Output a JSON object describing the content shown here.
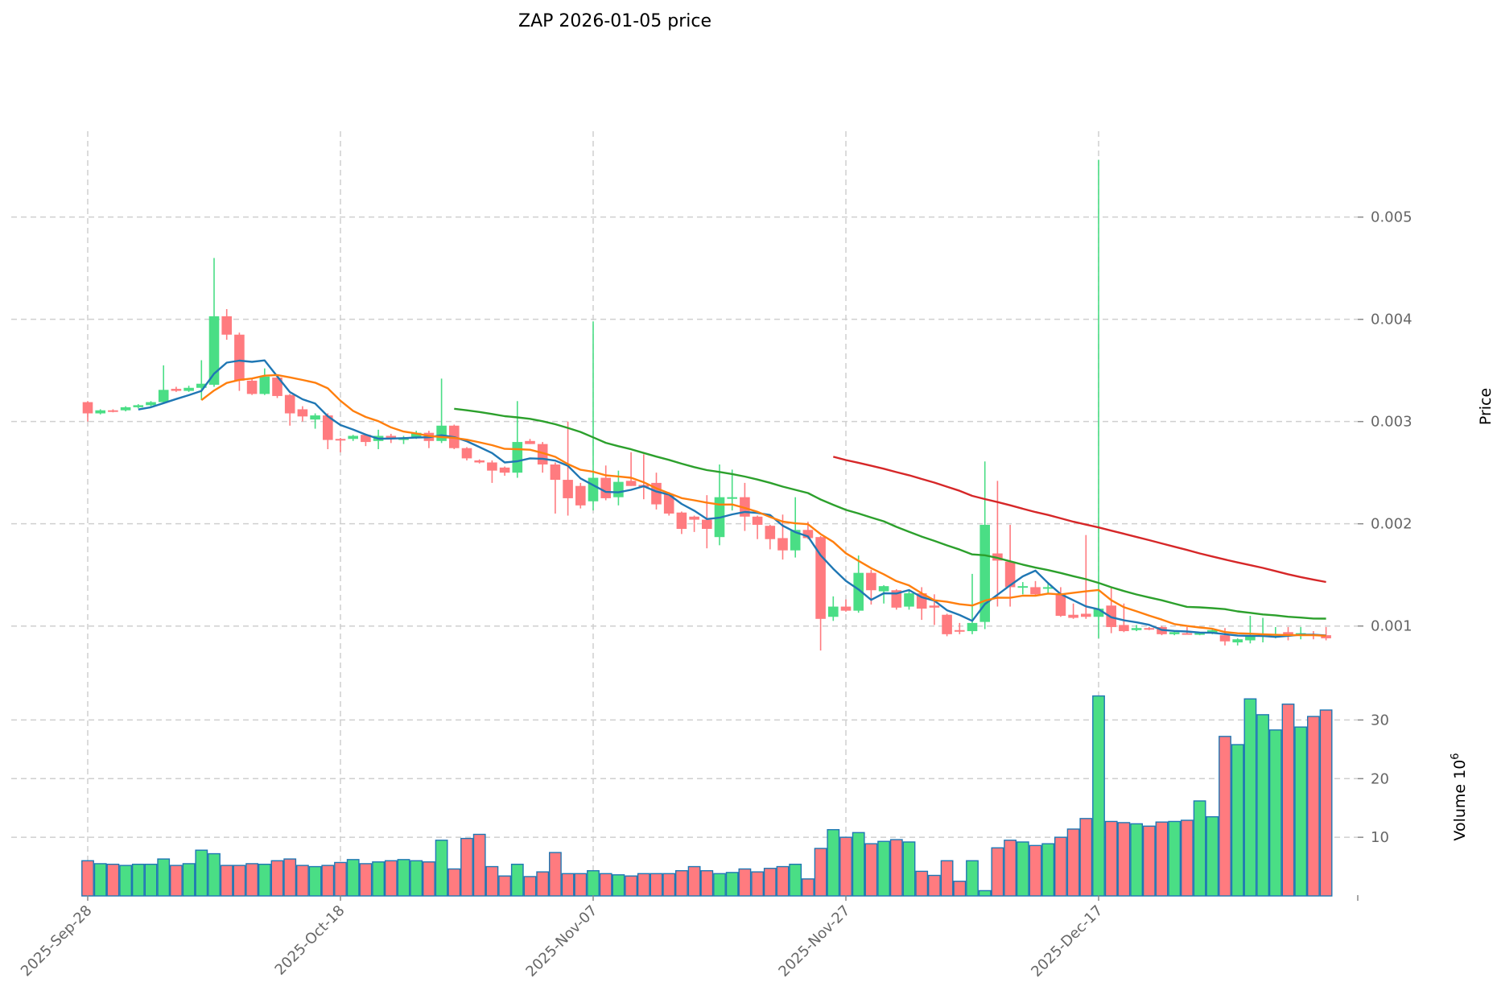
{
  "chart_data": {
    "type": "candlestick",
    "title": "ZAP  2026-01-05  price",
    "ylabel": "Price",
    "volume_label": "Volume  10",
    "volume_label_exp": "6",
    "start_date": "2025-09-28",
    "ylim": [
      0.00047,
      0.00584
    ],
    "volume_ylim": [
      0,
      35
    ],
    "grid": true,
    "price_ticks": [
      {
        "value": 0.001,
        "label": "0.001"
      },
      {
        "value": 0.002,
        "label": "0.002"
      },
      {
        "value": 0.003,
        "label": "0.003"
      },
      {
        "value": 0.004,
        "label": "0.004"
      },
      {
        "value": 0.005,
        "label": "0.005"
      }
    ],
    "volume_ticks": [
      {
        "value": 10,
        "label": "10"
      },
      {
        "value": 20,
        "label": "20"
      },
      {
        "value": 30,
        "label": "30"
      }
    ],
    "x_ticks": [
      {
        "index": 0,
        "label": "2025-Sep-28"
      },
      {
        "index": 20,
        "label": "2025-Oct-18"
      },
      {
        "index": 40,
        "label": "2025-Nov-07"
      },
      {
        "index": 60,
        "label": "2025-Nov-27"
      },
      {
        "index": 80,
        "label": "2025-Dec-17"
      }
    ],
    "colors": {
      "up": "#4ade85",
      "down": "#ff7b7f",
      "volume_edge": "#1f77b4"
    },
    "moving_averages": [
      {
        "period": 5,
        "color": "#1f77b4"
      },
      {
        "period": 10,
        "color": "#ff7f0e"
      },
      {
        "period": 30,
        "color": "#2ca02c"
      },
      {
        "period": 60,
        "color": "#d62728"
      }
    ],
    "ohlc": [
      [
        0.00319,
        0.0032,
        0.003,
        0.00308
      ],
      [
        0.00308,
        0.00312,
        0.00307,
        0.00311
      ],
      [
        0.00311,
        0.00312,
        0.00309,
        0.0031
      ],
      [
        0.00311,
        0.00315,
        0.0031,
        0.00314
      ],
      [
        0.00314,
        0.00317,
        0.00313,
        0.00316
      ],
      [
        0.00316,
        0.0032,
        0.00315,
        0.00319
      ],
      [
        0.00319,
        0.00355,
        0.00318,
        0.00331
      ],
      [
        0.00332,
        0.00334,
        0.00329,
        0.0033
      ],
      [
        0.0033,
        0.00335,
        0.00329,
        0.00333
      ],
      [
        0.00333,
        0.0036,
        0.00321,
        0.00337
      ],
      [
        0.00336,
        0.0046,
        0.00334,
        0.00403
      ],
      [
        0.00403,
        0.0041,
        0.0038,
        0.00385
      ],
      [
        0.00385,
        0.00387,
        0.0033,
        0.0034
      ],
      [
        0.0034,
        0.00342,
        0.00326,
        0.00327
      ],
      [
        0.00327,
        0.00352,
        0.00326,
        0.00344
      ],
      [
        0.00343,
        0.00345,
        0.00323,
        0.00325
      ],
      [
        0.00326,
        0.00327,
        0.00296,
        0.00308
      ],
      [
        0.00312,
        0.00315,
        0.003,
        0.00305
      ],
      [
        0.00302,
        0.00308,
        0.00293,
        0.00306
      ],
      [
        0.00306,
        0.00308,
        0.00273,
        0.00282
      ],
      [
        0.00283,
        0.00284,
        0.0027,
        0.00282
      ],
      [
        0.00283,
        0.00287,
        0.00281,
        0.00286
      ],
      [
        0.00287,
        0.00288,
        0.00276,
        0.0028
      ],
      [
        0.00281,
        0.00292,
        0.00273,
        0.00286
      ],
      [
        0.00286,
        0.00288,
        0.00279,
        0.00283
      ],
      [
        0.00282,
        0.00286,
        0.00278,
        0.00284
      ],
      [
        0.00285,
        0.00291,
        0.00283,
        0.00289
      ],
      [
        0.00289,
        0.00291,
        0.00274,
        0.00281
      ],
      [
        0.00281,
        0.00342,
        0.00279,
        0.00296
      ],
      [
        0.00296,
        0.00297,
        0.00273,
        0.00274
      ],
      [
        0.00274,
        0.00275,
        0.00262,
        0.00264
      ],
      [
        0.00262,
        0.00263,
        0.00259,
        0.0026
      ],
      [
        0.0026,
        0.00262,
        0.0024,
        0.00252
      ],
      [
        0.00255,
        0.00256,
        0.00247,
        0.0025
      ],
      [
        0.0025,
        0.0032,
        0.00245,
        0.0028
      ],
      [
        0.00281,
        0.00283,
        0.00278,
        0.00278
      ],
      [
        0.00278,
        0.0028,
        0.0025,
        0.00258
      ],
      [
        0.00258,
        0.0026,
        0.0021,
        0.00243
      ],
      [
        0.00243,
        0.003,
        0.00208,
        0.00225
      ],
      [
        0.00237,
        0.0024,
        0.00215,
        0.00218
      ],
      [
        0.00222,
        0.00398,
        0.00213,
        0.00245
      ],
      [
        0.00245,
        0.00257,
        0.00223,
        0.00225
      ],
      [
        0.00226,
        0.00252,
        0.00218,
        0.00241
      ],
      [
        0.00242,
        0.0027,
        0.00237,
        0.00237
      ],
      [
        0.00238,
        0.00268,
        0.00224,
        0.00236
      ],
      [
        0.0024,
        0.0025,
        0.00214,
        0.00219
      ],
      [
        0.00229,
        0.00231,
        0.00208,
        0.0021
      ],
      [
        0.00211,
        0.00212,
        0.0019,
        0.00195
      ],
      [
        0.00207,
        0.00208,
        0.00192,
        0.00204
      ],
      [
        0.00204,
        0.00228,
        0.00176,
        0.00195
      ],
      [
        0.00187,
        0.00258,
        0.00179,
        0.00226
      ],
      [
        0.00225,
        0.00253,
        0.00213,
        0.00226
      ],
      [
        0.00226,
        0.0024,
        0.00193,
        0.00207
      ],
      [
        0.00207,
        0.00208,
        0.00185,
        0.00199
      ],
      [
        0.00198,
        0.00199,
        0.00175,
        0.00185
      ],
      [
        0.00186,
        0.00209,
        0.00165,
        0.00174
      ],
      [
        0.00174,
        0.00226,
        0.00167,
        0.00194
      ],
      [
        0.00194,
        0.00202,
        0.00185,
        0.00186
      ],
      [
        0.00187,
        0.00188,
        0.00076,
        0.00107
      ],
      [
        0.00109,
        0.00129,
        0.00105,
        0.00119
      ],
      [
        0.00119,
        0.00126,
        0.00114,
        0.00115
      ],
      [
        0.00115,
        0.00169,
        0.00113,
        0.00152
      ],
      [
        0.00152,
        0.00155,
        0.00121,
        0.00135
      ],
      [
        0.00134,
        0.0014,
        0.00122,
        0.00139
      ],
      [
        0.00135,
        0.00136,
        0.00116,
        0.00118
      ],
      [
        0.00119,
        0.00134,
        0.00116,
        0.00132
      ],
      [
        0.00132,
        0.00138,
        0.00106,
        0.00117
      ],
      [
        0.0012,
        0.00131,
        0.00101,
        0.00118
      ],
      [
        0.00111,
        0.00112,
        0.0009,
        0.00092
      ],
      [
        0.00096,
        0.00103,
        0.00092,
        0.00095
      ],
      [
        0.00095,
        0.00151,
        0.00092,
        0.00103
      ],
      [
        0.00104,
        0.00261,
        0.00097,
        0.00199
      ],
      [
        0.00171,
        0.00242,
        0.00119,
        0.00164
      ],
      [
        0.00163,
        0.00199,
        0.00119,
        0.00138
      ],
      [
        0.00138,
        0.00143,
        0.00131,
        0.00139
      ],
      [
        0.00138,
        0.00144,
        0.0013,
        0.00131
      ],
      [
        0.00137,
        0.00143,
        0.00131,
        0.00138
      ],
      [
        0.00132,
        0.00138,
        0.00109,
        0.0011
      ],
      [
        0.00111,
        0.00122,
        0.00107,
        0.00108
      ],
      [
        0.00112,
        0.00189,
        0.00107,
        0.00109
      ],
      [
        0.00109,
        0.00556,
        0.00088,
        0.00117
      ],
      [
        0.0012,
        0.00138,
        0.00093,
        0.00099
      ],
      [
        0.00101,
        0.00122,
        0.00094,
        0.00095
      ],
      [
        0.00096,
        0.00101,
        0.00095,
        0.00098
      ],
      [
        0.00098,
        0.00099,
        0.00096,
        0.00097
      ],
      [
        0.00099,
        0.001,
        0.00091,
        0.00092
      ],
      [
        0.00092,
        0.00095,
        0.00091,
        0.00094
      ],
      [
        0.00093,
        0.00099,
        0.00092,
        0.00092
      ],
      [
        0.00092,
        0.00094,
        0.00091,
        0.00093
      ],
      [
        0.00093,
        0.00097,
        0.00092,
        0.00096
      ],
      [
        0.00091,
        0.00098,
        0.00081,
        0.00085
      ],
      [
        0.00084,
        0.00088,
        0.00081,
        0.00087
      ],
      [
        0.00086,
        0.0011,
        0.00083,
        0.00091
      ],
      [
        0.00091,
        0.00108,
        0.00084,
        0.00092
      ],
      [
        0.00091,
        0.00099,
        0.00088,
        0.00092
      ],
      [
        0.00094,
        0.00099,
        0.00086,
        0.0009
      ],
      [
        0.00091,
        0.00099,
        0.00087,
        0.00093
      ],
      [
        0.00092,
        0.00095,
        0.00087,
        0.00091
      ],
      [
        0.00091,
        0.00099,
        0.00086,
        0.00088
      ]
    ],
    "volume": [
      6.0,
      5.5,
      5.4,
      5.2,
      5.4,
      5.4,
      6.3,
      5.2,
      5.5,
      7.8,
      7.2,
      5.2,
      5.2,
      5.5,
      5.4,
      6.0,
      6.3,
      5.2,
      5.0,
      5.2,
      5.7,
      6.2,
      5.5,
      5.8,
      6.0,
      6.2,
      6.0,
      5.8,
      9.5,
      4.6,
      9.8,
      10.5,
      5.0,
      3.4,
      5.4,
      3.3,
      4.1,
      7.4,
      3.8,
      3.8,
      4.3,
      3.8,
      3.6,
      3.4,
      3.8,
      3.8,
      3.8,
      4.3,
      5.0,
      4.3,
      3.8,
      4.0,
      4.6,
      4.1,
      4.7,
      5.0,
      5.4,
      2.9,
      8.1,
      11.3,
      10.0,
      10.8,
      8.9,
      9.3,
      9.6,
      9.2,
      4.2,
      3.5,
      6.0,
      2.5,
      6.0,
      0.9,
      8.2,
      9.5,
      9.2,
      8.6,
      8.9,
      10.0,
      11.4,
      13.2,
      34.1,
      12.7,
      12.5,
      12.3,
      11.9,
      12.6,
      12.7,
      12.9,
      16.2,
      13.5,
      27.2,
      25.8,
      33.6,
      30.9,
      28.3,
      32.7,
      28.8,
      30.6,
      31.7
    ],
    "volume_direction": [
      "down",
      "up",
      "down",
      "up",
      "up",
      "up",
      "up",
      "down",
      "up",
      "up",
      "up",
      "down",
      "down",
      "down",
      "up",
      "down",
      "down",
      "down",
      "up",
      "down",
      "down",
      "up",
      "down",
      "up",
      "down",
      "up",
      "up",
      "down",
      "up",
      "down",
      "down",
      "down",
      "down",
      "down",
      "up",
      "down",
      "down",
      "down",
      "down",
      "down",
      "up",
      "down",
      "up",
      "down",
      "down",
      "down",
      "down",
      "down",
      "down",
      "down",
      "up",
      "up",
      "down",
      "down",
      "down",
      "down",
      "up",
      "down",
      "down",
      "up",
      "down",
      "up",
      "down",
      "up",
      "down",
      "up",
      "down",
      "down",
      "down",
      "down",
      "up",
      "up",
      "down",
      "down",
      "up",
      "down",
      "up",
      "down",
      "down",
      "down",
      "up",
      "down",
      "down",
      "up",
      "down",
      "down",
      "up",
      "down",
      "up",
      "up",
      "down",
      "up",
      "up",
      "up",
      "up",
      "down",
      "up",
      "down",
      "down"
    ]
  }
}
